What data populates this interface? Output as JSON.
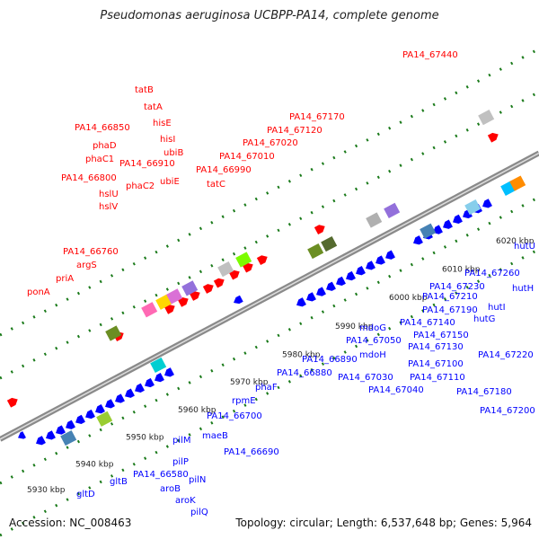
{
  "title": "Pseudomonas aeruginosa UCBPP-PA14, complete genome",
  "footer": {
    "accession": "Accession: NC_008463",
    "summary": "Topology: circular; Length: 6,537,648 bp; Genes: 5,964"
  },
  "colors": {
    "forward": "#ff0000",
    "reverse": "#0000ff",
    "backbone": "#777777",
    "tick": "#1a7a1a"
  },
  "kbp_ticks": [
    "5930 kbp",
    "5940 kbp",
    "5950 kbp",
    "5960 kbp",
    "5970 kbp",
    "5980 kbp",
    "5990 kbp",
    "6000 kbp",
    "6010 kbp",
    "6020 kbp"
  ],
  "forward_labels": [
    "ponA",
    "priA",
    "argS",
    "PA14_66760",
    "hslV",
    "hslU",
    "PA14_66800",
    "phaC2",
    "phaC1",
    "PA14_66910",
    "phaD",
    "ubiE",
    "PA14_66850",
    "ubiB",
    "hisI",
    "hisE",
    "tatA",
    "tatB",
    "tatC",
    "PA14_66990",
    "PA14_67010",
    "PA14_67020",
    "PA14_67120",
    "PA14_67170",
    "PA14_67440"
  ],
  "reverse_labels": [
    "gltD",
    "gltB",
    "aroB",
    "aroK",
    "PA14_66580",
    "pilQ",
    "pilP",
    "pilN",
    "pilM",
    "maeB",
    "PA14_66690",
    "PA14_66700",
    "rpmE",
    "phaF",
    "PA14_66880",
    "PA14_66890",
    "PA14_67030",
    "PA14_67040",
    "mdoH",
    "mdoG",
    "PA14_67050",
    "PA14_67100",
    "PA14_67110",
    "PA14_67130",
    "PA14_67140",
    "PA14_67150",
    "PA14_67180",
    "PA14_67190",
    "PA14_67200",
    "PA14_67210",
    "PA14_67220",
    "PA14_67230",
    "PA14_67260",
    "hutG",
    "hutI",
    "hutH",
    "hutU"
  ]
}
